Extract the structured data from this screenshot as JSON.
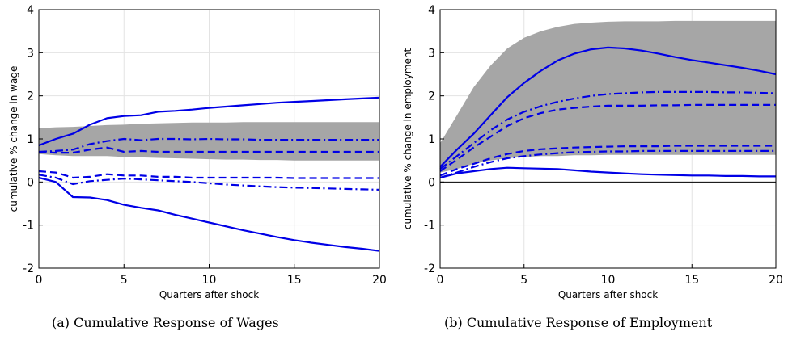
{
  "chart_data": [
    {
      "type": "line",
      "caption": "(a) Cumulative Response of Wages",
      "xlabel": "Quarters after shock",
      "ylabel": "cumulative % change in wage",
      "xlim": [
        0,
        20
      ],
      "ylim": [
        -2,
        4
      ],
      "xticks": [
        "0",
        "5",
        "10",
        "15",
        "20"
      ],
      "yticks": [
        "-2",
        "-1",
        "0",
        "1",
        "2",
        "3",
        "4"
      ],
      "grid": true,
      "zero_line": false,
      "band_color": "#a6a6a6",
      "line_color": "#0000e6",
      "x": [
        0,
        1,
        2,
        3,
        4,
        5,
        6,
        7,
        8,
        9,
        10,
        11,
        12,
        13,
        14,
        15,
        16,
        17,
        18,
        19,
        20
      ],
      "band": {
        "upper": [
          1.25,
          1.27,
          1.28,
          1.3,
          1.32,
          1.33,
          1.35,
          1.36,
          1.37,
          1.38,
          1.38,
          1.38,
          1.39,
          1.39,
          1.39,
          1.39,
          1.39,
          1.39,
          1.39,
          1.39,
          1.39
        ],
        "lower": [
          0.65,
          0.62,
          0.6,
          0.6,
          0.6,
          0.58,
          0.57,
          0.56,
          0.55,
          0.54,
          0.53,
          0.52,
          0.52,
          0.51,
          0.51,
          0.5,
          0.5,
          0.5,
          0.5,
          0.5,
          0.5
        ]
      },
      "series": [
        {
          "style": "solid",
          "values": [
            0.85,
            1.0,
            1.12,
            1.33,
            1.48,
            1.53,
            1.55,
            1.63,
            1.65,
            1.68,
            1.72,
            1.75,
            1.78,
            1.81,
            1.84,
            1.86,
            1.88,
            1.9,
            1.92,
            1.94,
            1.96
          ]
        },
        {
          "style": "dashdot",
          "values": [
            0.7,
            0.72,
            0.75,
            0.88,
            0.95,
            1.0,
            0.97,
            1.0,
            1.0,
            0.99,
            1.0,
            0.99,
            0.99,
            0.98,
            0.98,
            0.98,
            0.98,
            0.98,
            0.98,
            0.98,
            0.98
          ]
        },
        {
          "style": "dashed",
          "values": [
            0.7,
            0.68,
            0.68,
            0.75,
            0.8,
            0.7,
            0.72,
            0.7,
            0.7,
            0.7,
            0.7,
            0.7,
            0.7,
            0.7,
            0.7,
            0.7,
            0.7,
            0.7,
            0.7,
            0.7,
            0.7
          ]
        },
        {
          "style": "dashed",
          "values": [
            0.25,
            0.22,
            0.1,
            0.12,
            0.18,
            0.15,
            0.15,
            0.12,
            0.12,
            0.1,
            0.1,
            0.1,
            0.1,
            0.1,
            0.1,
            0.09,
            0.09,
            0.09,
            0.09,
            0.09,
            0.09
          ]
        },
        {
          "style": "dashdot",
          "values": [
            0.17,
            0.1,
            -0.05,
            0.02,
            0.05,
            0.08,
            0.06,
            0.04,
            0.02,
            0.0,
            -0.03,
            -0.06,
            -0.08,
            -0.1,
            -0.12,
            -0.13,
            -0.14,
            -0.15,
            -0.16,
            -0.17,
            -0.18
          ]
        },
        {
          "style": "solid",
          "values": [
            0.1,
            0.0,
            -0.35,
            -0.36,
            -0.42,
            -0.53,
            -0.6,
            -0.66,
            -0.76,
            -0.85,
            -0.94,
            -1.03,
            -1.12,
            -1.2,
            -1.28,
            -1.35,
            -1.41,
            -1.46,
            -1.51,
            -1.55,
            -1.6
          ]
        }
      ]
    },
    {
      "type": "line",
      "caption": "(b) Cumulative Response of Employment",
      "xlabel": "Quarters after shock",
      "ylabel": "cumulative % change in employment",
      "xlim": [
        0,
        20
      ],
      "ylim": [
        -2,
        4
      ],
      "xticks": [
        "0",
        "5",
        "10",
        "15",
        "20"
      ],
      "yticks": [
        "-2",
        "-1",
        "0",
        "1",
        "2",
        "3",
        "4"
      ],
      "grid": true,
      "zero_line": true,
      "band_color": "#a6a6a6",
      "line_color": "#0000e6",
      "x": [
        0,
        1,
        2,
        3,
        4,
        5,
        6,
        7,
        8,
        9,
        10,
        11,
        12,
        13,
        14,
        15,
        16,
        17,
        18,
        19,
        20
      ],
      "band": {
        "upper": [
          0.9,
          1.55,
          2.2,
          2.7,
          3.1,
          3.35,
          3.5,
          3.6,
          3.67,
          3.7,
          3.72,
          3.73,
          3.73,
          3.73,
          3.74,
          3.74,
          3.74,
          3.74,
          3.74,
          3.74,
          3.74
        ],
        "lower": [
          0.22,
          0.3,
          0.42,
          0.5,
          0.55,
          0.58,
          0.6,
          0.6,
          0.62,
          0.62,
          0.63,
          0.63,
          0.63,
          0.63,
          0.63,
          0.63,
          0.63,
          0.63,
          0.63,
          0.63,
          0.63
        ]
      },
      "series": [
        {
          "style": "solid",
          "values": [
            0.35,
            0.75,
            1.12,
            1.55,
            1.97,
            2.3,
            2.58,
            2.82,
            2.98,
            3.08,
            3.12,
            3.1,
            3.05,
            2.98,
            2.9,
            2.83,
            2.77,
            2.71,
            2.65,
            2.58,
            2.5
          ]
        },
        {
          "style": "dashdot",
          "values": [
            0.3,
            0.6,
            0.9,
            1.2,
            1.45,
            1.63,
            1.76,
            1.86,
            1.94,
            2.0,
            2.04,
            2.06,
            2.08,
            2.09,
            2.09,
            2.09,
            2.09,
            2.08,
            2.08,
            2.07,
            2.06
          ]
        },
        {
          "style": "dashed",
          "values": [
            0.25,
            0.52,
            0.8,
            1.05,
            1.3,
            1.48,
            1.6,
            1.68,
            1.72,
            1.75,
            1.77,
            1.77,
            1.77,
            1.78,
            1.78,
            1.79,
            1.79,
            1.79,
            1.79,
            1.79,
            1.79
          ]
        },
        {
          "style": "dashed",
          "values": [
            0.15,
            0.3,
            0.42,
            0.55,
            0.65,
            0.72,
            0.76,
            0.78,
            0.8,
            0.81,
            0.82,
            0.83,
            0.83,
            0.83,
            0.84,
            0.84,
            0.84,
            0.84,
            0.84,
            0.84,
            0.84
          ]
        },
        {
          "style": "dashdot",
          "values": [
            0.1,
            0.22,
            0.35,
            0.46,
            0.55,
            0.6,
            0.64,
            0.67,
            0.69,
            0.7,
            0.71,
            0.71,
            0.72,
            0.72,
            0.72,
            0.72,
            0.72,
            0.72,
            0.72,
            0.72,
            0.72
          ]
        },
        {
          "style": "solid",
          "values": [
            0.1,
            0.2,
            0.25,
            0.3,
            0.33,
            0.32,
            0.31,
            0.3,
            0.27,
            0.24,
            0.22,
            0.2,
            0.18,
            0.17,
            0.16,
            0.15,
            0.15,
            0.14,
            0.14,
            0.13,
            0.13
          ]
        }
      ]
    }
  ]
}
